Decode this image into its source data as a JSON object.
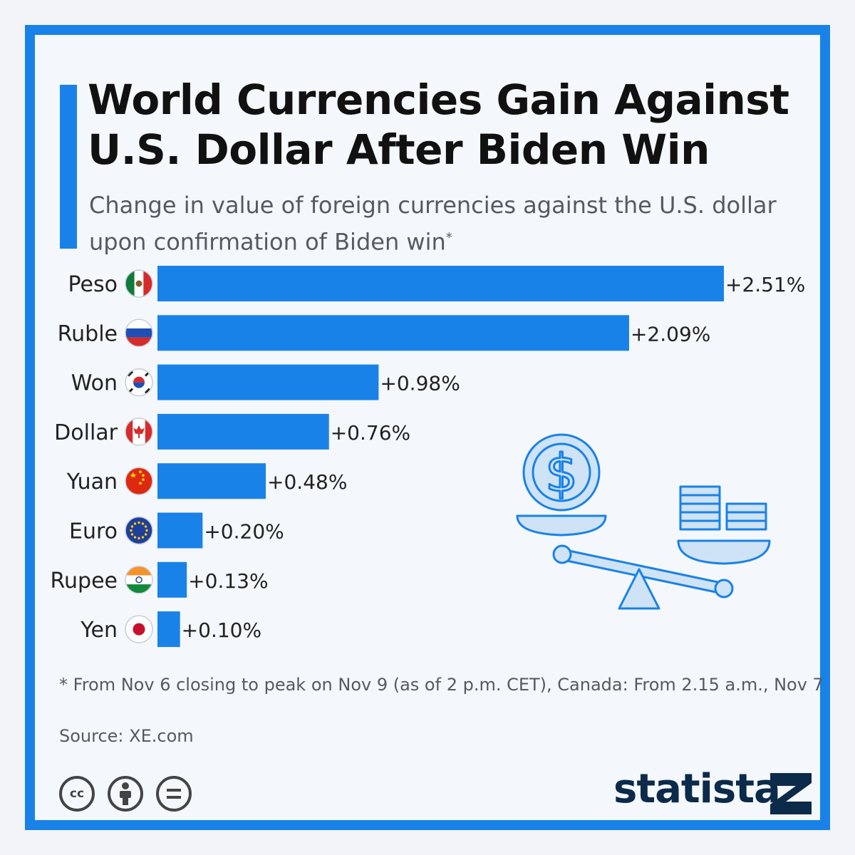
{
  "title": "World Currencies Gain Against U.S. Dollar After Biden Win",
  "subtitle": "Change in value of foreign currencies against the U.S. dollar upon confirmation of Biden win",
  "subtitle_mark": "*",
  "footnote": "* From Nov 6 closing to peak on Nov 9 (as of 2 p.m. CET), Canada: From 2.15 a.m., Nov 7",
  "source": "Source: XE.com",
  "brand": "statista",
  "license_icons": [
    "cc-icon",
    "attribution-icon",
    "no-derivatives-icon"
  ],
  "colors": {
    "bar": "#1982e8",
    "frame": "#1982e8",
    "brand": "#0c2a4a"
  },
  "illustration": "balance-scale-dollar-coins-icon",
  "chart_data": {
    "type": "bar",
    "orientation": "horizontal",
    "categories": [
      "Peso",
      "Ruble",
      "Won",
      "Dollar",
      "Yuan",
      "Euro",
      "Rupee",
      "Yen"
    ],
    "flags": [
      "mexico-flag-icon",
      "russia-flag-icon",
      "south-korea-flag-icon",
      "canada-flag-icon",
      "china-flag-icon",
      "eu-flag-icon",
      "india-flag-icon",
      "japan-flag-icon"
    ],
    "values": [
      2.51,
      2.09,
      0.98,
      0.76,
      0.48,
      0.2,
      0.13,
      0.1
    ],
    "labels": [
      "+2.51%",
      "+2.09%",
      "+0.98%",
      "+0.76%",
      "+0.48%",
      "+0.20%",
      "+0.13%",
      "+0.10%"
    ],
    "xlim": [
      0,
      2.51
    ],
    "grid": false,
    "legend": "none"
  }
}
